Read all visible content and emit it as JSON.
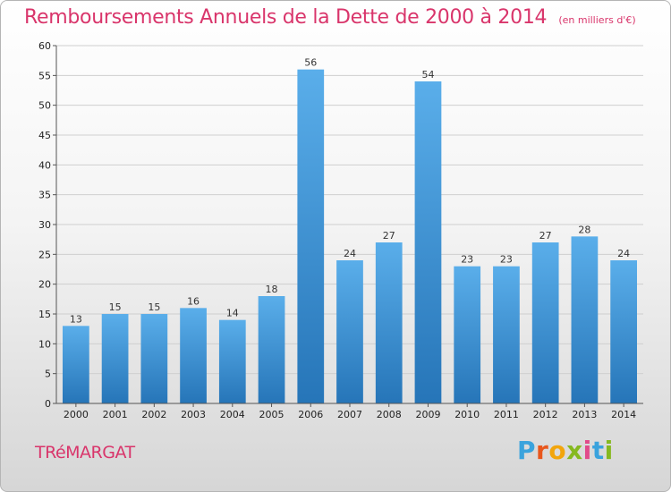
{
  "header": {
    "title": "Remboursements Annuels de la Dette de 2000 à 2014",
    "subtitle": "(en milliers d'€)"
  },
  "footer": {
    "commune": "TRéMARGAT",
    "brand": [
      "P",
      "r",
      "o",
      "x",
      "i",
      "t",
      "i"
    ],
    "brand_colors": [
      "#3aa3dd",
      "#e8571d",
      "#f2a50c",
      "#86b920",
      "#e14b8a",
      "#3aa3dd",
      "#86b920"
    ]
  },
  "colors": {
    "bar_light": "#5aaeea",
    "bar_dark": "#2675b8",
    "grid": "#cfcfcf",
    "axis": "#555555",
    "accent": "#d9356b"
  },
  "chart_data": {
    "type": "bar",
    "title": "Remboursements Annuels de la Dette de 2000 à 2014",
    "subtitle": "(en milliers d'€)",
    "xlabel": "",
    "ylabel": "",
    "categories": [
      "2000",
      "2001",
      "2002",
      "2003",
      "2004",
      "2005",
      "2006",
      "2007",
      "2008",
      "2009",
      "2010",
      "2011",
      "2012",
      "2013",
      "2014"
    ],
    "values": [
      13,
      15,
      15,
      16,
      14,
      18,
      56,
      24,
      27,
      54,
      23,
      23,
      27,
      28,
      24
    ],
    "ylim": [
      0,
      60
    ],
    "yticks": [
      0,
      5,
      10,
      15,
      20,
      25,
      30,
      35,
      40,
      45,
      50,
      55,
      60
    ],
    "grid": true
  }
}
